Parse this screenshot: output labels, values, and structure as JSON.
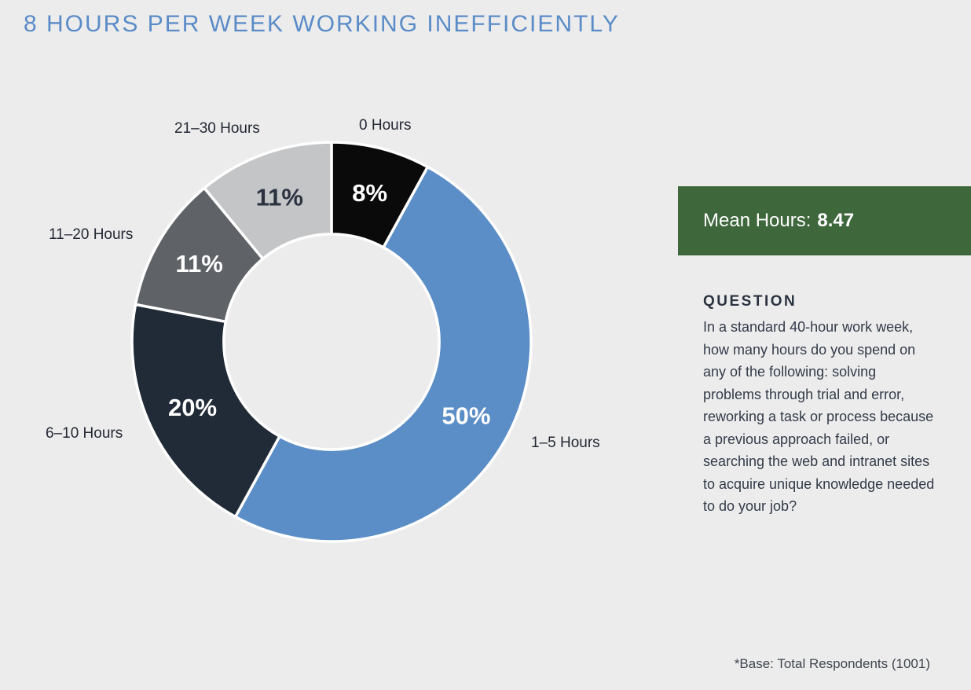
{
  "page": {
    "background": "#ECECEC",
    "title": "8 HOURS PER WEEK WORKING INEFFICIENTLY",
    "title_color": "#5B8CC8",
    "footnote": "*Base: Total Respondents (1001)"
  },
  "chart_data": {
    "type": "pie",
    "subtype": "donut",
    "title": "8 HOURS PER WEEK WORKING INEFFICIENTLY",
    "start_angle_deg": 0,
    "direction": "clockwise",
    "inner_radius_ratio": 0.54,
    "outer_radius_px": 254,
    "separator_color": "#FFFFFF",
    "hole_color": "#ECECEC",
    "slices": [
      {
        "label": "0 Hours",
        "value": 8,
        "display": "8%",
        "color": "#0A0A0A",
        "value_label_color": "#FFFFFF"
      },
      {
        "label": "1–5 Hours",
        "value": 50,
        "display": "50%",
        "color": "#5B8DC7",
        "value_label_color": "#FFFFFF"
      },
      {
        "label": "6–10 Hours",
        "value": 20,
        "display": "20%",
        "color": "#212A37",
        "value_label_color": "#FFFFFF"
      },
      {
        "label": "11–20 Hours",
        "value": 11,
        "display": "11%",
        "color": "#5F6266",
        "value_label_color": "#FFFFFF"
      },
      {
        "label": "21–30 Hours",
        "value": 11,
        "display": "11%",
        "color": "#C4C5C7",
        "value_label_color": "#2A3240"
      }
    ]
  },
  "mean_box": {
    "label": "Mean Hours:",
    "value": "8.47",
    "background": "#3E673B",
    "text_color": "#FFFFFF"
  },
  "question": {
    "heading": "QUESTION",
    "text": "In a standard 40-hour work week, how many hours do you spend on any of the following: solving problems through trial and error, reworking a task or process because a previous approach failed, or searching the web and intranet sites to acquire unique knowledge needed to do your job?"
  }
}
